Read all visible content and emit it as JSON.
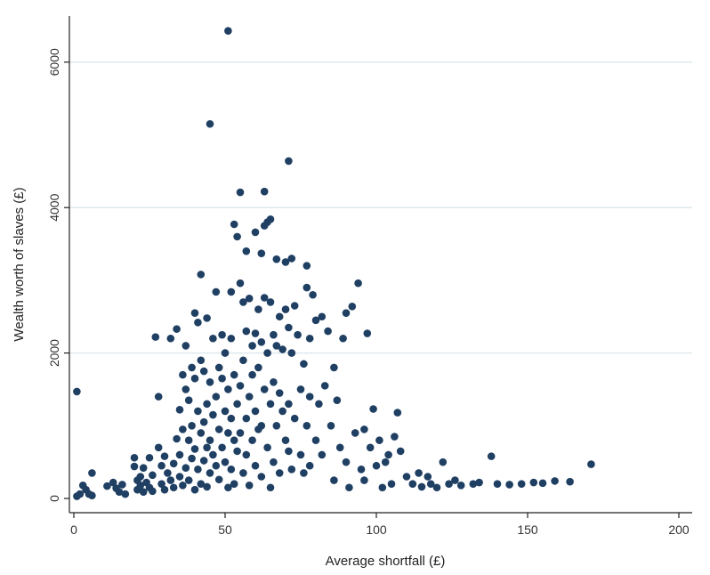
{
  "chart_data": {
    "type": "scatter",
    "title": "",
    "xlabel": "Average shortfall (£)",
    "ylabel": "Wealth worth of slaves (£)",
    "xlim": [
      0,
      200
    ],
    "ylim": [
      0,
      6500
    ],
    "xticks": [
      "0",
      "50",
      "100",
      "150",
      "200"
    ],
    "yticks": [
      "0",
      "2000",
      "4000",
      "6000"
    ],
    "grid": "horizontal",
    "marker_color": "#1f3f63",
    "grid_color": "#dfe9ee",
    "series": [
      {
        "points": [
          [
            1,
            1470
          ],
          [
            1,
            30
          ],
          [
            2,
            60
          ],
          [
            3,
            180
          ],
          [
            4,
            120
          ],
          [
            5,
            60
          ],
          [
            6,
            350
          ],
          [
            6,
            40
          ],
          [
            11,
            170
          ],
          [
            13,
            220
          ],
          [
            14,
            140
          ],
          [
            15,
            90
          ],
          [
            16,
            190
          ],
          [
            17,
            60
          ],
          [
            20,
            560
          ],
          [
            20,
            440
          ],
          [
            21,
            250
          ],
          [
            21,
            120
          ],
          [
            22,
            300
          ],
          [
            22,
            180
          ],
          [
            23,
            90
          ],
          [
            23,
            420
          ],
          [
            24,
            220
          ],
          [
            25,
            150
          ],
          [
            25,
            560
          ],
          [
            26,
            320
          ],
          [
            26,
            100
          ],
          [
            27,
            2220
          ],
          [
            28,
            1400
          ],
          [
            28,
            700
          ],
          [
            29,
            450
          ],
          [
            29,
            200
          ],
          [
            30,
            580
          ],
          [
            30,
            120
          ],
          [
            31,
            350
          ],
          [
            32,
            250
          ],
          [
            32,
            2200
          ],
          [
            33,
            480
          ],
          [
            33,
            150
          ],
          [
            34,
            820
          ],
          [
            34,
            2330
          ],
          [
            35,
            1220
          ],
          [
            35,
            600
          ],
          [
            35,
            300
          ],
          [
            36,
            1700
          ],
          [
            36,
            950
          ],
          [
            36,
            180
          ],
          [
            37,
            2100
          ],
          [
            37,
            1500
          ],
          [
            37,
            420
          ],
          [
            38,
            1350
          ],
          [
            38,
            800
          ],
          [
            38,
            250
          ],
          [
            39,
            1800
          ],
          [
            39,
            1000
          ],
          [
            39,
            550
          ],
          [
            40,
            2550
          ],
          [
            40,
            1650
          ],
          [
            40,
            680
          ],
          [
            40,
            120
          ],
          [
            41,
            2420
          ],
          [
            41,
            1200
          ],
          [
            41,
            400
          ],
          [
            42,
            3080
          ],
          [
            42,
            1900
          ],
          [
            42,
            900
          ],
          [
            42,
            200
          ],
          [
            43,
            1750
          ],
          [
            43,
            1050
          ],
          [
            43,
            520
          ],
          [
            44,
            2480
          ],
          [
            44,
            1300
          ],
          [
            44,
            700
          ],
          [
            44,
            160
          ],
          [
            45,
            5150
          ],
          [
            45,
            1600
          ],
          [
            45,
            800
          ],
          [
            45,
            350
          ],
          [
            46,
            2200
          ],
          [
            46,
            1150
          ],
          [
            46,
            600
          ],
          [
            47,
            2840
          ],
          [
            47,
            1400
          ],
          [
            47,
            450
          ],
          [
            48,
            1800
          ],
          [
            48,
            950
          ],
          [
            48,
            260
          ],
          [
            49,
            2250
          ],
          [
            49,
            1650
          ],
          [
            49,
            700
          ],
          [
            50,
            2000
          ],
          [
            50,
            1200
          ],
          [
            50,
            500
          ],
          [
            51,
            6430
          ],
          [
            51,
            1500
          ],
          [
            51,
            900
          ],
          [
            51,
            150
          ],
          [
            52,
            2840
          ],
          [
            52,
            2200
          ],
          [
            52,
            1100
          ],
          [
            52,
            400
          ],
          [
            53,
            3770
          ],
          [
            53,
            1700
          ],
          [
            53,
            800
          ],
          [
            53,
            200
          ],
          [
            54,
            3600
          ],
          [
            54,
            1300
          ],
          [
            54,
            650
          ],
          [
            55,
            4210
          ],
          [
            55,
            2960
          ],
          [
            55,
            1550
          ],
          [
            55,
            900
          ],
          [
            56,
            2700
          ],
          [
            56,
            1900
          ],
          [
            56,
            350
          ],
          [
            57,
            3400
          ],
          [
            57,
            2300
          ],
          [
            57,
            1100
          ],
          [
            57,
            600
          ],
          [
            58,
            2750
          ],
          [
            58,
            1400
          ],
          [
            58,
            180
          ],
          [
            59,
            2100
          ],
          [
            59,
            1700
          ],
          [
            59,
            800
          ],
          [
            60,
            3660
          ],
          [
            60,
            2270
          ],
          [
            60,
            1200
          ],
          [
            60,
            450
          ],
          [
            61,
            2600
          ],
          [
            61,
            1800
          ],
          [
            61,
            950
          ],
          [
            62,
            3370
          ],
          [
            62,
            2150
          ],
          [
            62,
            1000
          ],
          [
            62,
            300
          ],
          [
            63,
            4220
          ],
          [
            63,
            3750
          ],
          [
            63,
            2760
          ],
          [
            63,
            1500
          ],
          [
            64,
            3800
          ],
          [
            64,
            2000
          ],
          [
            64,
            700
          ],
          [
            65,
            3840
          ],
          [
            65,
            2700
          ],
          [
            65,
            1300
          ],
          [
            65,
            150
          ],
          [
            66,
            2250
          ],
          [
            66,
            1600
          ],
          [
            66,
            500
          ],
          [
            67,
            3290
          ],
          [
            67,
            2100
          ],
          [
            67,
            1000
          ],
          [
            68,
            2500
          ],
          [
            68,
            1450
          ],
          [
            68,
            350
          ],
          [
            69,
            2050
          ],
          [
            69,
            1200
          ],
          [
            70,
            3250
          ],
          [
            70,
            2600
          ],
          [
            70,
            800
          ],
          [
            71,
            4640
          ],
          [
            71,
            2350
          ],
          [
            71,
            1300
          ],
          [
            71,
            650
          ],
          [
            72,
            3300
          ],
          [
            72,
            2000
          ],
          [
            72,
            400
          ],
          [
            73,
            2650
          ],
          [
            73,
            1100
          ],
          [
            74,
            2250
          ],
          [
            75,
            1500
          ],
          [
            75,
            600
          ],
          [
            76,
            1850
          ],
          [
            76,
            350
          ],
          [
            77,
            3200
          ],
          [
            77,
            2900
          ],
          [
            77,
            1000
          ],
          [
            78,
            2200
          ],
          [
            78,
            1400
          ],
          [
            78,
            450
          ],
          [
            79,
            2800
          ],
          [
            80,
            2450
          ],
          [
            80,
            800
          ],
          [
            81,
            1300
          ],
          [
            82,
            2500
          ],
          [
            82,
            600
          ],
          [
            83,
            1550
          ],
          [
            84,
            2300
          ],
          [
            85,
            1000
          ],
          [
            86,
            1800
          ],
          [
            86,
            250
          ],
          [
            87,
            1350
          ],
          [
            88,
            700
          ],
          [
            89,
            2200
          ],
          [
            90,
            2550
          ],
          [
            90,
            500
          ],
          [
            91,
            150
          ],
          [
            92,
            2640
          ],
          [
            93,
            900
          ],
          [
            94,
            2960
          ],
          [
            95,
            400
          ],
          [
            96,
            950
          ],
          [
            96,
            250
          ],
          [
            97,
            2270
          ],
          [
            98,
            700
          ],
          [
            99,
            1230
          ],
          [
            100,
            450
          ],
          [
            101,
            800
          ],
          [
            102,
            150
          ],
          [
            103,
            500
          ],
          [
            104,
            600
          ],
          [
            105,
            200
          ],
          [
            106,
            850
          ],
          [
            107,
            1180
          ],
          [
            108,
            650
          ],
          [
            110,
            300
          ],
          [
            112,
            200
          ],
          [
            114,
            350
          ],
          [
            115,
            160
          ],
          [
            117,
            300
          ],
          [
            118,
            200
          ],
          [
            120,
            150
          ],
          [
            122,
            500
          ],
          [
            124,
            200
          ],
          [
            126,
            250
          ],
          [
            128,
            180
          ],
          [
            132,
            200
          ],
          [
            134,
            220
          ],
          [
            138,
            580
          ],
          [
            140,
            200
          ],
          [
            144,
            190
          ],
          [
            148,
            200
          ],
          [
            152,
            220
          ],
          [
            155,
            210
          ],
          [
            159,
            240
          ],
          [
            164,
            230
          ],
          [
            171,
            470
          ]
        ]
      }
    ]
  }
}
